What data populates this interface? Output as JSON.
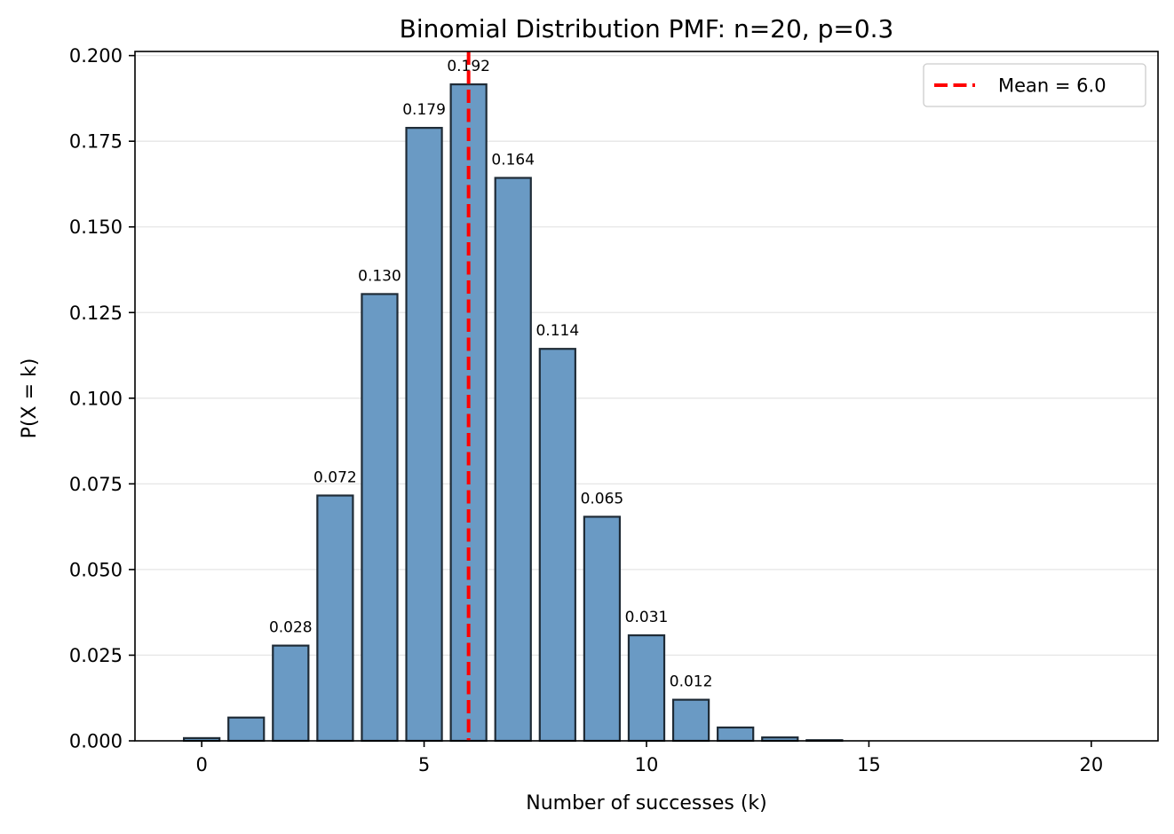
{
  "chart_data": {
    "type": "bar",
    "title": "Binomial Distribution PMF: n=20, p=0.3",
    "xlabel": "Number of successes (k)",
    "ylabel": "P(X = k)",
    "x": [
      0,
      1,
      2,
      3,
      4,
      5,
      6,
      7,
      8,
      9,
      10,
      11,
      12,
      13,
      14,
      15,
      16,
      17,
      18,
      19,
      20
    ],
    "values": [
      0.0008,
      0.0068,
      0.0278,
      0.0716,
      0.1304,
      0.1789,
      0.1916,
      0.1643,
      0.1144,
      0.0654,
      0.0308,
      0.012,
      0.0039,
      0.001,
      0.0002,
      0.0,
      0.0,
      0.0,
      0.0,
      0.0,
      0.0
    ],
    "data_labels": [
      "",
      "",
      "0.028",
      "0.072",
      "0.130",
      "0.179",
      "0.192",
      "0.164",
      "0.114",
      "0.065",
      "0.031",
      "0.012",
      "",
      "",
      "",
      "",
      "",
      "",
      "",
      "",
      ""
    ],
    "xlim": [
      -1.5,
      21.5
    ],
    "ylim": [
      0,
      0.2012
    ],
    "x_ticks": [
      0,
      5,
      10,
      15,
      20
    ],
    "x_tick_labels": [
      "0",
      "5",
      "10",
      "15",
      "20"
    ],
    "y_ticks": [
      0,
      0.025,
      0.05,
      0.075,
      0.1,
      0.125,
      0.15,
      0.175,
      0.2
    ],
    "y_tick_labels": [
      "0.000",
      "0.025",
      "0.050",
      "0.075",
      "0.100",
      "0.125",
      "0.150",
      "0.175",
      "0.200"
    ],
    "mean_line": {
      "x": 6.0,
      "label": "Mean = 6.0",
      "color": "#ff0000"
    },
    "legend": {
      "position": "top-right",
      "entries": [
        "Mean = 6.0"
      ]
    },
    "bar_color": "#6a9ac4",
    "bar_edge_color": "#1f2b36",
    "grid": {
      "y": true,
      "x": false,
      "color": "#e6e6e6"
    }
  }
}
